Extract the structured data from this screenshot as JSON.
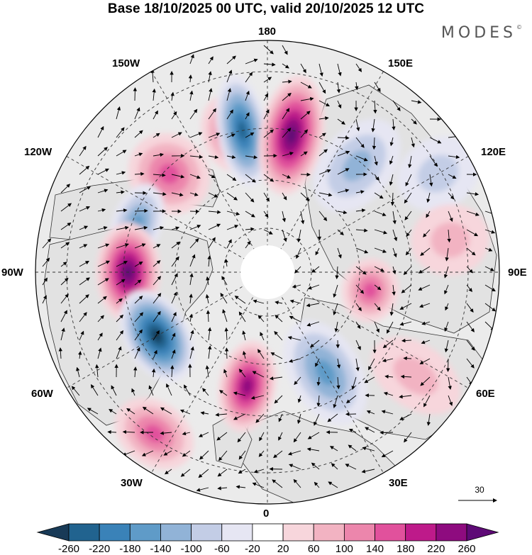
{
  "title": "Base 18/10/2025 00 UTC, valid 20/10/2025 12 UTC",
  "brand": "MODES",
  "brand_mark": "©",
  "map": {
    "projection": "north polar stereographic",
    "longitude_labels": {
      "top": "180",
      "bottom": "0",
      "left": "90W",
      "right": "90E",
      "upper_left_1": "150W",
      "upper_left_2": "120W",
      "upper_right_1": "150E",
      "upper_right_2": "120E",
      "lower_left_1": "60W",
      "lower_left_2": "30W",
      "lower_right_1": "60E",
      "lower_right_2": "30E"
    },
    "reference_vector": "30",
    "anomaly_cells": [
      {
        "center_lon": -165,
        "value": 130,
        "sign": "positive"
      },
      {
        "center_lon": -135,
        "value": 160,
        "sign": "positive"
      },
      {
        "center_lon": -170,
        "value": -240,
        "sign": "negative"
      },
      {
        "center_lon": 170,
        "value": 250,
        "sign": "positive"
      },
      {
        "center_lon": 140,
        "value": -120,
        "sign": "negative"
      },
      {
        "center_lon": 120,
        "value": -50,
        "sign": "negative"
      },
      {
        "center_lon": -110,
        "value": -150,
        "sign": "negative"
      },
      {
        "center_lon": -90,
        "value": 250,
        "sign": "positive"
      },
      {
        "center_lon": 80,
        "value": 150,
        "sign": "positive"
      },
      {
        "center_lon": 100,
        "value": 70,
        "sign": "positive"
      },
      {
        "center_lon": -60,
        "value": -260,
        "sign": "negative"
      },
      {
        "center_lon": -10,
        "value": 240,
        "sign": "positive"
      },
      {
        "center_lon": 30,
        "value": -140,
        "sign": "negative"
      },
      {
        "center_lon": 55,
        "value": 70,
        "sign": "positive"
      },
      {
        "center_lon": -35,
        "value": 140,
        "sign": "positive"
      }
    ]
  },
  "colorbar": {
    "labels": [
      "-260",
      "-220",
      "-180",
      "-140",
      "-100",
      "-60",
      "-20",
      "20",
      "60",
      "100",
      "140",
      "180",
      "220",
      "260"
    ],
    "colors": [
      "#183a57",
      "#21638f",
      "#3a82b8",
      "#5f9bc8",
      "#91b3d7",
      "#c3cde6",
      "#e6e6f3",
      "#ffffff",
      "#f7d6dc",
      "#f2b3c2",
      "#ec86ac",
      "#e1519c",
      "#be1a8a",
      "#8e0b7f",
      "#5e0a76"
    ],
    "colors_meaning": "extension triangles at both ends"
  }
}
